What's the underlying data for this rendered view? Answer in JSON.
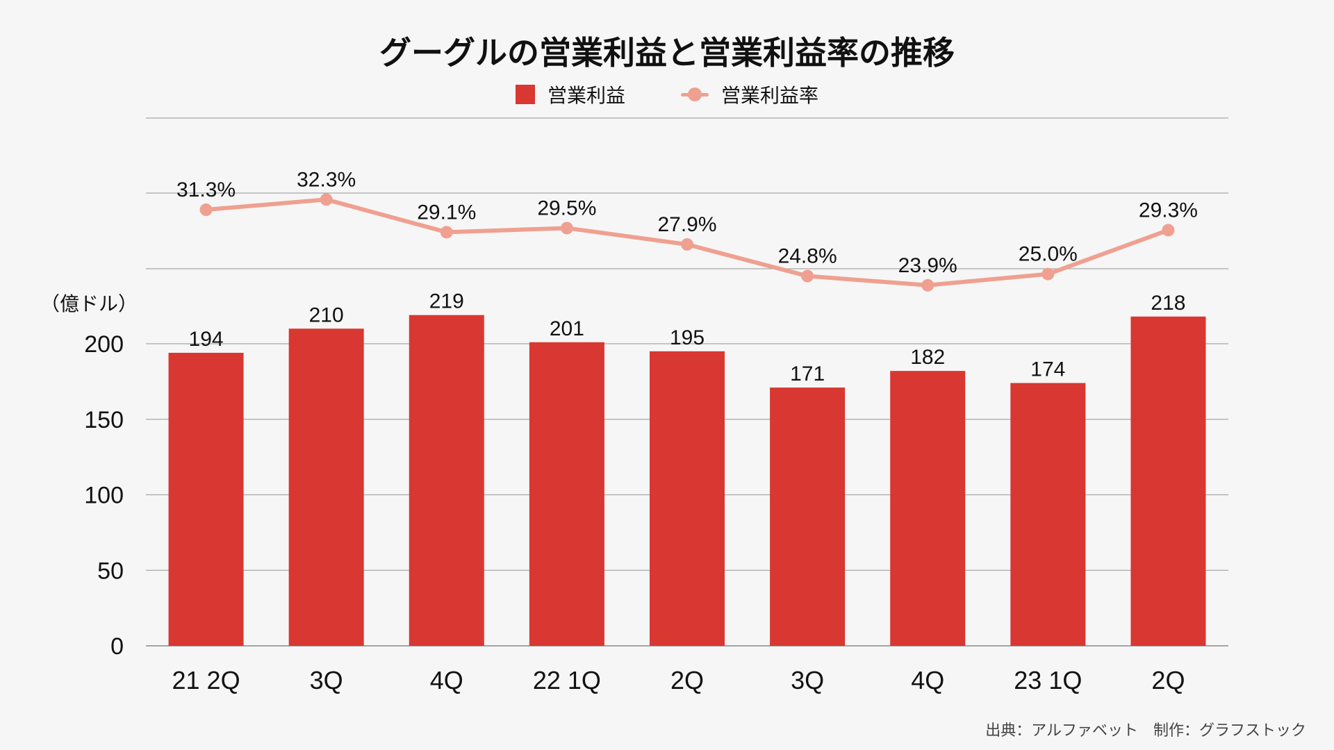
{
  "chart_data": {
    "type": "bar",
    "title": "グーグルの営業利益と営業利益率の推移",
    "unit_label": "（億ドル）",
    "categories": [
      "21 2Q",
      "3Q",
      "4Q",
      "22 1Q",
      "2Q",
      "3Q",
      "4Q",
      "23 1Q",
      "2Q"
    ],
    "series": [
      {
        "name": "営業利益",
        "type": "bar",
        "color": "#d93731",
        "values": [
          194,
          210,
          219,
          201,
          195,
          171,
          182,
          174,
          218
        ],
        "labels": [
          "194",
          "210",
          "219",
          "201",
          "195",
          "171",
          "182",
          "174",
          "218"
        ]
      },
      {
        "name": "営業利益率",
        "type": "line",
        "color": "#efa090",
        "values": [
          31.3,
          32.3,
          29.1,
          29.5,
          27.9,
          24.8,
          23.9,
          25.0,
          29.3
        ],
        "labels": [
          "31.3%",
          "32.3%",
          "29.1%",
          "29.5%",
          "27.9%",
          "24.8%",
          "23.9%",
          "25.0%",
          "29.3%"
        ]
      }
    ],
    "y_ticks": [
      "0",
      "50",
      "100",
      "150",
      "200"
    ],
    "ylim": [
      0,
      200
    ],
    "grid": true,
    "legend_position": "top-center"
  },
  "source": "出典：アルファベット　制作：グラフストック"
}
